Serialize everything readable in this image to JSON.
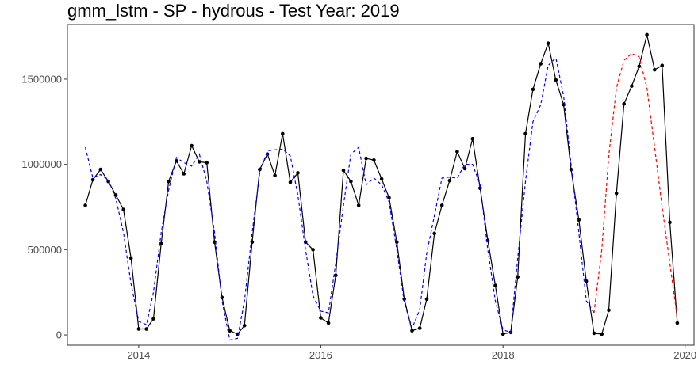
{
  "chart_data": {
    "type": "line",
    "title": "gmm_lstm - SP - hydrous - Test Year: 2019",
    "xlabel": "",
    "ylabel": "",
    "xlim": [
      "2013-03-21",
      "2020-02-06"
    ],
    "ylim": [
      -60000,
      1820000
    ],
    "x_ticks": [
      {
        "label": "2014",
        "x": "2014-01-01"
      },
      {
        "label": "2016",
        "x": "2016-01-01"
      },
      {
        "label": "2018",
        "x": "2018-01-01"
      },
      {
        "label": "2020",
        "x": "2020-01-01"
      }
    ],
    "y_ticks": [
      {
        "label": "0",
        "y": 0
      },
      {
        "label": "500000",
        "y": 500000
      },
      {
        "label": "1000000",
        "y": 1000000
      },
      {
        "label": "1500000",
        "y": 1500000
      }
    ],
    "grid": false,
    "legend": "none",
    "series": [
      {
        "color": "#000000",
        "style": "solid-with-points",
        "points": [
          [
            "2013-06-01",
            760000
          ],
          [
            "2013-07-01",
            910000
          ],
          [
            "2013-08-01",
            970000
          ],
          [
            "2013-09-01",
            900000
          ],
          [
            "2013-10-01",
            820000
          ],
          [
            "2013-11-01",
            735000
          ],
          [
            "2013-12-01",
            450000
          ],
          [
            "2014-01-01",
            35000
          ],
          [
            "2014-02-01",
            35000
          ],
          [
            "2014-03-01",
            95000
          ],
          [
            "2014-04-01",
            535000
          ],
          [
            "2014-05-01",
            900000
          ],
          [
            "2014-06-01",
            1020000
          ],
          [
            "2014-07-01",
            945000
          ],
          [
            "2014-08-01",
            1110000
          ],
          [
            "2014-09-01",
            1015000
          ],
          [
            "2014-10-01",
            1010000
          ],
          [
            "2014-11-01",
            545000
          ],
          [
            "2014-12-01",
            220000
          ],
          [
            "2015-01-01",
            25000
          ],
          [
            "2015-02-01",
            5000
          ],
          [
            "2015-03-01",
            55000
          ],
          [
            "2015-04-01",
            545000
          ],
          [
            "2015-05-01",
            970000
          ],
          [
            "2015-06-01",
            1060000
          ],
          [
            "2015-07-01",
            935000
          ],
          [
            "2015-08-01",
            1180000
          ],
          [
            "2015-09-01",
            895000
          ],
          [
            "2015-10-01",
            950000
          ],
          [
            "2015-11-01",
            545000
          ],
          [
            "2015-12-01",
            500000
          ],
          [
            "2016-01-01",
            100000
          ],
          [
            "2016-02-01",
            70000
          ],
          [
            "2016-03-01",
            350000
          ],
          [
            "2016-04-01",
            965000
          ],
          [
            "2016-05-01",
            900000
          ],
          [
            "2016-06-01",
            760000
          ],
          [
            "2016-07-01",
            1035000
          ],
          [
            "2016-08-01",
            1025000
          ],
          [
            "2016-09-01",
            915000
          ],
          [
            "2016-10-01",
            805000
          ],
          [
            "2016-11-01",
            545000
          ],
          [
            "2016-12-01",
            210000
          ],
          [
            "2017-01-01",
            25000
          ],
          [
            "2017-02-01",
            40000
          ],
          [
            "2017-03-01",
            210000
          ],
          [
            "2017-04-01",
            595000
          ],
          [
            "2017-05-01",
            760000
          ],
          [
            "2017-06-01",
            905000
          ],
          [
            "2017-07-01",
            1075000
          ],
          [
            "2017-08-01",
            975000
          ],
          [
            "2017-09-01",
            1150000
          ],
          [
            "2017-10-01",
            860000
          ],
          [
            "2017-11-01",
            555000
          ],
          [
            "2017-12-01",
            290000
          ],
          [
            "2018-01-01",
            5000
          ],
          [
            "2018-02-01",
            15000
          ],
          [
            "2018-03-01",
            340000
          ],
          [
            "2018-04-01",
            1180000
          ],
          [
            "2018-05-01",
            1440000
          ],
          [
            "2018-06-01",
            1590000
          ],
          [
            "2018-07-01",
            1710000
          ],
          [
            "2018-08-01",
            1495000
          ],
          [
            "2018-09-01",
            1350000
          ],
          [
            "2018-10-01",
            970000
          ],
          [
            "2018-11-01",
            675000
          ],
          [
            "2018-12-01",
            315000
          ],
          [
            "2019-01-01",
            10000
          ],
          [
            "2019-02-01",
            5000
          ],
          [
            "2019-03-01",
            145000
          ],
          [
            "2019-04-01",
            830000
          ],
          [
            "2019-05-01",
            1355000
          ],
          [
            "2019-06-01",
            1460000
          ],
          [
            "2019-07-01",
            1575000
          ],
          [
            "2019-08-01",
            1760000
          ],
          [
            "2019-09-01",
            1555000
          ],
          [
            "2019-10-01",
            1580000
          ],
          [
            "2019-11-01",
            660000
          ],
          [
            "2019-12-01",
            70000
          ]
        ]
      },
      {
        "color": "#0000ff",
        "style": "dashed",
        "points": [
          [
            "2013-06-01",
            1100000
          ],
          [
            "2013-07-01",
            920000
          ],
          [
            "2013-08-01",
            940000
          ],
          [
            "2013-09-01",
            910000
          ],
          [
            "2013-10-01",
            800000
          ],
          [
            "2013-11-01",
            600000
          ],
          [
            "2013-12-01",
            300000
          ],
          [
            "2014-01-01",
            80000
          ],
          [
            "2014-02-01",
            60000
          ],
          [
            "2014-03-01",
            250000
          ],
          [
            "2014-04-01",
            600000
          ],
          [
            "2014-05-01",
            850000
          ],
          [
            "2014-06-01",
            1040000
          ],
          [
            "2014-07-01",
            1010000
          ],
          [
            "2014-08-01",
            990000
          ],
          [
            "2014-09-01",
            1060000
          ],
          [
            "2014-10-01",
            900000
          ],
          [
            "2014-11-01",
            600000
          ],
          [
            "2014-12-01",
            200000
          ],
          [
            "2015-01-01",
            -30000
          ],
          [
            "2015-02-01",
            -20000
          ],
          [
            "2015-03-01",
            200000
          ],
          [
            "2015-04-01",
            600000
          ],
          [
            "2015-05-01",
            950000
          ],
          [
            "2015-06-01",
            1080000
          ],
          [
            "2015-07-01",
            1085000
          ],
          [
            "2015-08-01",
            1090000
          ],
          [
            "2015-09-01",
            1050000
          ],
          [
            "2015-10-01",
            820000
          ],
          [
            "2015-11-01",
            500000
          ],
          [
            "2015-12-01",
            230000
          ],
          [
            "2016-01-01",
            140000
          ],
          [
            "2016-02-01",
            130000
          ],
          [
            "2016-03-01",
            420000
          ],
          [
            "2016-04-01",
            760000
          ],
          [
            "2016-05-01",
            1060000
          ],
          [
            "2016-06-01",
            1100000
          ],
          [
            "2016-07-01",
            880000
          ],
          [
            "2016-08-01",
            920000
          ],
          [
            "2016-09-01",
            880000
          ],
          [
            "2016-10-01",
            780000
          ],
          [
            "2016-11-01",
            500000
          ],
          [
            "2016-12-01",
            190000
          ],
          [
            "2017-01-01",
            40000
          ],
          [
            "2017-02-01",
            150000
          ],
          [
            "2017-03-01",
            480000
          ],
          [
            "2017-04-01",
            700000
          ],
          [
            "2017-05-01",
            920000
          ],
          [
            "2017-06-01",
            925000
          ],
          [
            "2017-07-01",
            920000
          ],
          [
            "2017-08-01",
            1000000
          ],
          [
            "2017-09-01",
            1000000
          ],
          [
            "2017-10-01",
            880000
          ],
          [
            "2017-11-01",
            500000
          ],
          [
            "2017-12-01",
            200000
          ],
          [
            "2018-01-01",
            30000
          ],
          [
            "2018-02-01",
            15000
          ],
          [
            "2018-03-01",
            450000
          ],
          [
            "2018-04-01",
            900000
          ],
          [
            "2018-05-01",
            1250000
          ],
          [
            "2018-06-01",
            1350000
          ],
          [
            "2018-07-01",
            1580000
          ],
          [
            "2018-08-01",
            1625000
          ],
          [
            "2018-09-01",
            1400000
          ],
          [
            "2018-10-01",
            1000000
          ],
          [
            "2018-11-01",
            600000
          ],
          [
            "2018-12-01",
            200000
          ],
          [
            "2019-01-01",
            130000
          ]
        ]
      },
      {
        "color": "#ff0000",
        "style": "dashed",
        "points": [
          [
            "2019-01-01",
            130000
          ],
          [
            "2019-02-01",
            500000
          ],
          [
            "2019-03-01",
            1050000
          ],
          [
            "2019-04-01",
            1450000
          ],
          [
            "2019-05-01",
            1610000
          ],
          [
            "2019-06-01",
            1650000
          ],
          [
            "2019-07-01",
            1630000
          ],
          [
            "2019-08-01",
            1450000
          ],
          [
            "2019-09-01",
            1100000
          ],
          [
            "2019-10-01",
            750000
          ],
          [
            "2019-11-01",
            420000
          ],
          [
            "2019-12-01",
            100000
          ]
        ]
      }
    ]
  }
}
